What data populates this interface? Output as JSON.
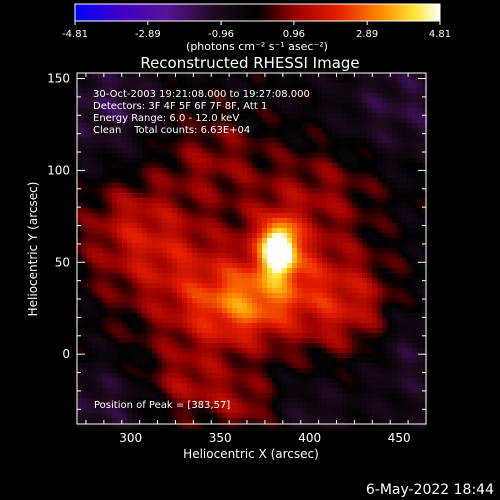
{
  "footer": {
    "date": "6-May-2022 18:44"
  },
  "colorbar": {
    "ticks": [
      "-4.81",
      "-2.89",
      "-0.96",
      "0.96",
      "2.89",
      "4.81"
    ],
    "tick_values": [
      -4.81,
      -2.89,
      -0.96,
      0.96,
      2.89,
      4.81
    ],
    "range": [
      -4.81,
      4.81
    ],
    "unit_text": "(photons cm⁻² s⁻¹ asec⁻²)",
    "colors": [
      "#0000ff",
      "#3c00c8",
      "#5a1496",
      "#1e0a1e",
      "#000000",
      "#960000",
      "#e61e00",
      "#ff8c00",
      "#ffe632",
      "#ffffff"
    ]
  },
  "chart_data": {
    "type": "heatmap",
    "title": "Reconstructed RHESSI Image",
    "xlabel": "Heliocentric X (arcsec)",
    "ylabel": "Heliocentric Y (arcsec)",
    "xlim": [
      270,
      465
    ],
    "ylim": [
      -38,
      153
    ],
    "xticks": [
      300,
      350,
      400,
      450
    ],
    "yticks": [
      0,
      50,
      100,
      150
    ],
    "annotations": [
      "30-Oct-2003 19:21:08.000 to 19:27:08.000",
      "Detectors: 3F 4F 5F 6F 7F 8F, Att 1",
      "Energy Range: 6.0 - 12.0 keV",
      "Clean    Total counts: 6.63E+04"
    ],
    "peak_label": "Position of Peak = [383,57]",
    "peak": {
      "x": 383,
      "y": 57,
      "value": 4.81
    },
    "emission_features": [
      {
        "x": 383,
        "y": 57,
        "sx": 6,
        "sy": 9,
        "value": 4.8
      },
      {
        "x": 382,
        "y": 57,
        "sx": 14,
        "sy": 20,
        "value": 1.6
      },
      {
        "x": 362,
        "y": 28,
        "sx": 20,
        "sy": 14,
        "value": 2.0
      },
      {
        "x": 345,
        "y": 20,
        "sx": 30,
        "sy": 22,
        "value": 1.2
      },
      {
        "x": 315,
        "y": 55,
        "sx": 28,
        "sy": 18,
        "value": 1.6
      },
      {
        "x": 345,
        "y": 105,
        "sx": 22,
        "sy": 18,
        "value": 1.1
      },
      {
        "x": 410,
        "y": 90,
        "sx": 22,
        "sy": 18,
        "value": 1.0
      },
      {
        "x": 405,
        "y": 40,
        "sx": 22,
        "sy": 22,
        "value": 1.1
      },
      {
        "x": 425,
        "y": 25,
        "sx": 20,
        "sy": 18,
        "value": 1.3
      },
      {
        "x": 330,
        "y": -18,
        "sx": 18,
        "sy": 12,
        "value": 1.2
      },
      {
        "x": 365,
        "y": -28,
        "sx": 14,
        "sy": 10,
        "value": 1.1
      },
      {
        "x": 300,
        "y": 78,
        "sx": 18,
        "sy": 14,
        "value": 0.9
      },
      {
        "x": 285,
        "y": 135,
        "sx": 22,
        "sy": 20,
        "value": -1.2
      },
      {
        "x": 450,
        "y": 135,
        "sx": 24,
        "sy": 22,
        "value": -1.1
      },
      {
        "x": 455,
        "y": 0,
        "sx": 16,
        "sy": 22,
        "value": -1.0
      },
      {
        "x": 285,
        "y": -25,
        "sx": 22,
        "sy": 14,
        "value": -1.1
      },
      {
        "x": 400,
        "y": -30,
        "sx": 16,
        "sy": 12,
        "value": -0.8
      }
    ]
  }
}
